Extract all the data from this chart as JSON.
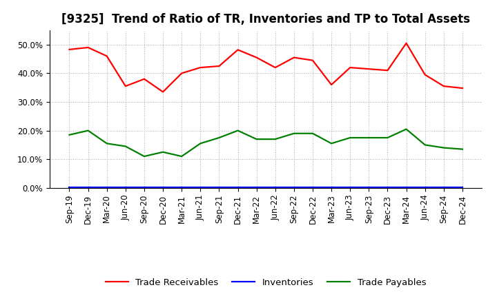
{
  "title": "[9325]  Trend of Ratio of TR, Inventories and TP to Total Assets",
  "x_labels": [
    "Sep-19",
    "Dec-19",
    "Mar-20",
    "Jun-20",
    "Sep-20",
    "Dec-20",
    "Mar-21",
    "Jun-21",
    "Sep-21",
    "Dec-21",
    "Mar-22",
    "Jun-22",
    "Sep-22",
    "Dec-22",
    "Mar-23",
    "Jun-23",
    "Sep-23",
    "Dec-23",
    "Mar-24",
    "Jun-24",
    "Sep-24",
    "Dec-24"
  ],
  "trade_receivables": [
    0.483,
    0.49,
    0.46,
    0.355,
    0.38,
    0.335,
    0.4,
    0.42,
    0.425,
    0.482,
    0.455,
    0.42,
    0.455,
    0.445,
    0.36,
    0.42,
    0.415,
    0.41,
    0.505,
    0.395,
    0.355,
    0.348
  ],
  "inventories": [
    0.003,
    0.003,
    0.003,
    0.003,
    0.003,
    0.003,
    0.003,
    0.003,
    0.003,
    0.003,
    0.003,
    0.003,
    0.003,
    0.003,
    0.003,
    0.003,
    0.003,
    0.003,
    0.003,
    0.003,
    0.003,
    0.003
  ],
  "trade_payables": [
    0.185,
    0.2,
    0.155,
    0.145,
    0.11,
    0.125,
    0.11,
    0.155,
    0.175,
    0.2,
    0.17,
    0.17,
    0.19,
    0.19,
    0.155,
    0.175,
    0.175,
    0.175,
    0.205,
    0.15,
    0.14,
    0.135
  ],
  "line_color_tr": "#FF0000",
  "line_color_inv": "#0000FF",
  "line_color_tp": "#008000",
  "background_color": "#FFFFFF",
  "plot_bg_color": "#FFFFFF",
  "grid_color": "#AAAAAA",
  "ylim": [
    0.0,
    0.55
  ],
  "yticks": [
    0.0,
    0.1,
    0.2,
    0.3,
    0.4,
    0.5
  ],
  "legend_labels": [
    "Trade Receivables",
    "Inventories",
    "Trade Payables"
  ],
  "title_fontsize": 12,
  "tick_fontsize": 8.5,
  "legend_fontsize": 9.5,
  "linewidth": 1.6
}
